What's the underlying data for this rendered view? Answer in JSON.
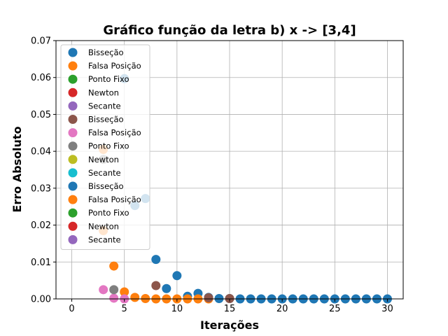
{
  "chart_data": {
    "type": "scatter",
    "title": "Gráfico função da letra b) x -> [3,4]",
    "xlabel": "Iterações",
    "ylabel": "Erro Absoluto",
    "xlim": [
      -1.5,
      31.5
    ],
    "ylim": [
      0,
      0.07
    ],
    "xticks": [
      "0",
      "5",
      "10",
      "15",
      "20",
      "25",
      "30"
    ],
    "xtick_values": [
      0,
      5,
      10,
      15,
      20,
      25,
      30
    ],
    "yticks": [
      "0.00",
      "0.01",
      "0.02",
      "0.03",
      "0.04",
      "0.05",
      "0.06",
      "0.07"
    ],
    "ytick_values": [
      0,
      0.01,
      0.02,
      0.03,
      0.04,
      0.05,
      0.06,
      0.07
    ],
    "grid": true,
    "legend_position": "upper-left",
    "series": [
      {
        "name": "Bisseção",
        "color": "#1f77b4",
        "points": [
          [
            5,
            0.0597
          ],
          [
            6,
            0.0253
          ],
          [
            7,
            0.0272
          ],
          [
            8,
            0.0107
          ],
          [
            9,
            0.0028
          ],
          [
            10,
            0.0063
          ],
          [
            11,
            0.0007
          ],
          [
            12,
            0.0015
          ],
          [
            13,
            0.0004
          ],
          [
            14,
            0.0001
          ],
          [
            15,
            0.0001
          ],
          [
            16,
            0.0
          ],
          [
            17,
            0.0
          ],
          [
            18,
            0.0
          ],
          [
            19,
            0.0
          ],
          [
            20,
            0.0
          ],
          [
            21,
            0.0
          ],
          [
            22,
            0.0
          ],
          [
            23,
            0.0
          ],
          [
            24,
            0.0
          ],
          [
            25,
            0.0
          ],
          [
            26,
            0.0
          ],
          [
            27,
            0.0
          ],
          [
            28,
            0.0
          ],
          [
            29,
            0.0
          ],
          [
            30,
            0.0
          ]
        ]
      },
      {
        "name": "Falsa Posição",
        "color": "#ff7f0e",
        "points": [
          [
            3,
            0.0405
          ],
          [
            3,
            0.0185
          ],
          [
            4,
            0.0089
          ],
          [
            5,
            0.0019
          ],
          [
            6,
            0.0004
          ],
          [
            7,
            0.0001
          ],
          [
            8,
            0.0
          ],
          [
            9,
            0.0
          ],
          [
            10,
            0.0
          ],
          [
            11,
            0.0
          ],
          [
            12,
            0.0
          ],
          [
            13,
            0.0
          ]
        ]
      },
      {
        "name": "Ponto Fixo",
        "color": "#2ca02c",
        "points": []
      },
      {
        "name": "Newton",
        "color": "#d62728",
        "points": []
      },
      {
        "name": "Secante",
        "color": "#9467bd",
        "points": []
      },
      {
        "name": "Bisseção",
        "color": "#8c564b",
        "points": [
          [
            8,
            0.0036
          ],
          [
            13,
            0.0003
          ],
          [
            15,
            0.0001
          ]
        ]
      },
      {
        "name": "Falsa Posição",
        "color": "#e377c2",
        "points": [
          [
            3,
            0.0025
          ],
          [
            4,
            0.0002
          ],
          [
            5,
            0.0
          ]
        ]
      },
      {
        "name": "Ponto Fixo",
        "color": "#7f7f7f",
        "points": [
          [
            3,
            0.0378
          ],
          [
            4,
            0.0025
          ]
        ]
      },
      {
        "name": "Newton",
        "color": "#bcbd22",
        "points": []
      },
      {
        "name": "Secante",
        "color": "#17becf",
        "points": []
      },
      {
        "name": "Bisseção",
        "color": "#1f77b4",
        "points": []
      },
      {
        "name": "Falsa Posição",
        "color": "#ff7f0e",
        "points": []
      },
      {
        "name": "Ponto Fixo",
        "color": "#2ca02c",
        "points": []
      },
      {
        "name": "Newton",
        "color": "#d62728",
        "points": []
      },
      {
        "name": "Secante",
        "color": "#9467bd",
        "points": []
      }
    ]
  }
}
